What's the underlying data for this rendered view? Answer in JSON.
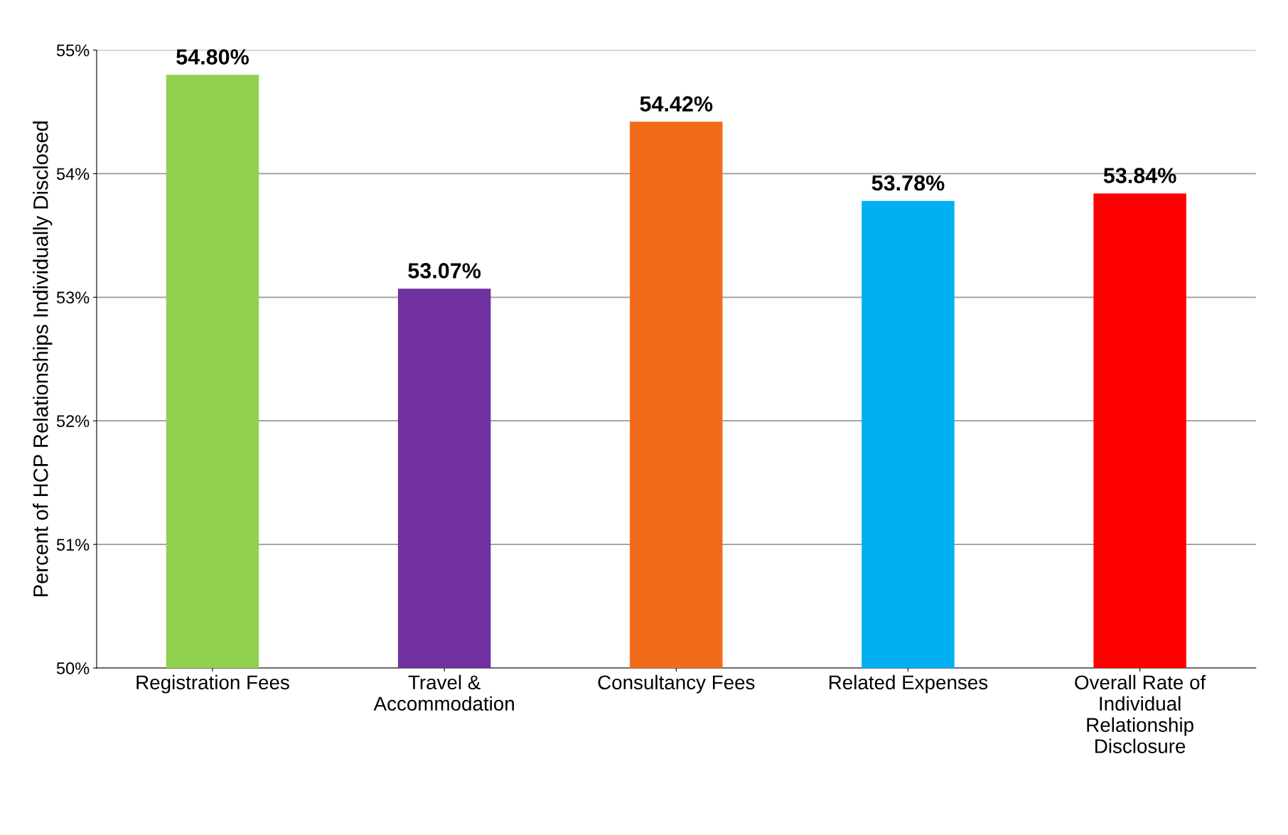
{
  "chart_data": {
    "type": "bar",
    "ylabel": "Percent of HCP Relationships Individually Disclosed",
    "categories": [
      "Registration Fees",
      "Travel &\nAccommodation",
      "Consultancy Fees",
      "Related Expenses",
      "Overall Rate of\nIndividual\nRelationship\nDisclosure"
    ],
    "values": [
      54.8,
      53.07,
      54.42,
      53.78,
      53.84
    ],
    "value_labels": [
      "54.80%",
      "53.07%",
      "54.42%",
      "53.78%",
      "53.84%"
    ],
    "colors": [
      "#92d050",
      "#7030a0",
      "#f26b1a",
      "#00b0f0",
      "#ff0000"
    ],
    "ylim": [
      50,
      55
    ],
    "yticks": [
      {
        "value": 50,
        "label": "50%"
      },
      {
        "value": 51,
        "label": "51%"
      },
      {
        "value": 52,
        "label": "52%"
      },
      {
        "value": 53,
        "label": "53%"
      },
      {
        "value": 54,
        "label": "54%"
      },
      {
        "value": 55,
        "label": "55%"
      }
    ],
    "grid": "y",
    "legend": false
  }
}
